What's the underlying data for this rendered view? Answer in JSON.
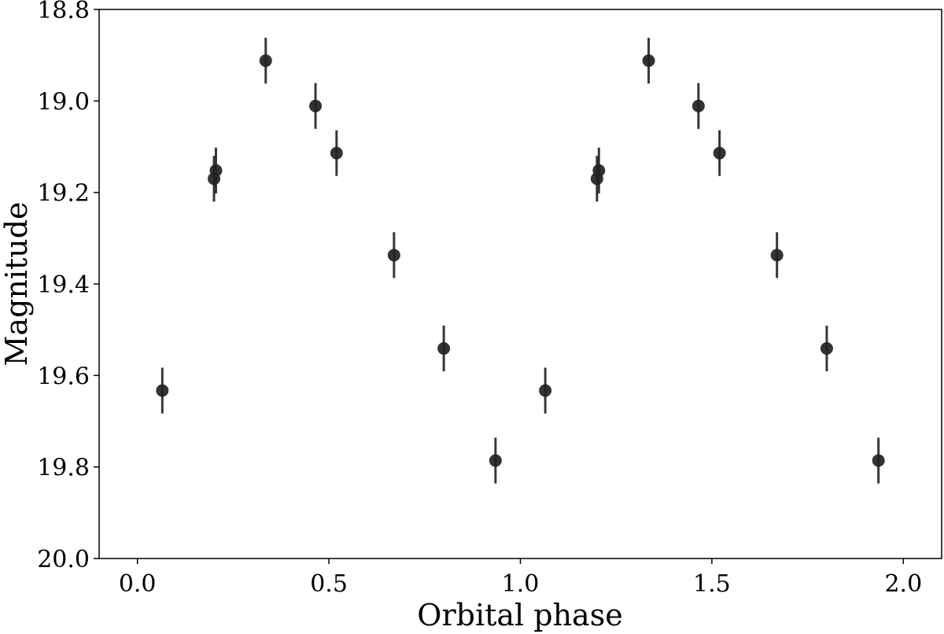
{
  "chart_data": {
    "type": "scatter",
    "title": "",
    "xlabel": "Orbital phase",
    "ylabel": "Magnitude",
    "xlim": [
      -0.1,
      2.1
    ],
    "ylim": [
      20.0,
      18.8
    ],
    "y_inverted": true,
    "grid": false,
    "x_ticks": [
      0.0,
      0.5,
      1.0,
      1.5,
      2.0
    ],
    "x_tick_labels": [
      "0.0",
      "0.5",
      "1.0",
      "1.5",
      "2.0"
    ],
    "y_ticks": [
      18.8,
      19.0,
      19.2,
      19.4,
      19.6,
      19.8,
      20.0
    ],
    "y_tick_labels": [
      "18.8",
      "19.0",
      "19.2",
      "19.4",
      "19.6",
      "19.8",
      "20.0"
    ],
    "marker_color": "#222222",
    "series": [
      {
        "points": [
          {
            "x": 0.065,
            "y": 19.633,
            "yerr": 0.05
          },
          {
            "x": 0.2,
            "y": 19.17,
            "yerr": 0.05
          },
          {
            "x": 0.205,
            "y": 19.152,
            "yerr": 0.05
          },
          {
            "x": 0.335,
            "y": 18.912,
            "yerr": 0.05
          },
          {
            "x": 0.465,
            "y": 19.011,
            "yerr": 0.05
          },
          {
            "x": 0.52,
            "y": 19.114,
            "yerr": 0.05
          },
          {
            "x": 0.67,
            "y": 19.337,
            "yerr": 0.05
          },
          {
            "x": 0.8,
            "y": 19.541,
            "yerr": 0.05
          },
          {
            "x": 0.935,
            "y": 19.786,
            "yerr": 0.05
          },
          {
            "x": 1.065,
            "y": 19.633,
            "yerr": 0.05
          },
          {
            "x": 1.2,
            "y": 19.17,
            "yerr": 0.05
          },
          {
            "x": 1.205,
            "y": 19.152,
            "yerr": 0.05
          },
          {
            "x": 1.335,
            "y": 18.912,
            "yerr": 0.05
          },
          {
            "x": 1.465,
            "y": 19.011,
            "yerr": 0.05
          },
          {
            "x": 1.52,
            "y": 19.114,
            "yerr": 0.05
          },
          {
            "x": 1.67,
            "y": 19.337,
            "yerr": 0.05
          },
          {
            "x": 1.8,
            "y": 19.541,
            "yerr": 0.05
          },
          {
            "x": 1.935,
            "y": 19.786,
            "yerr": 0.05
          }
        ]
      }
    ]
  }
}
